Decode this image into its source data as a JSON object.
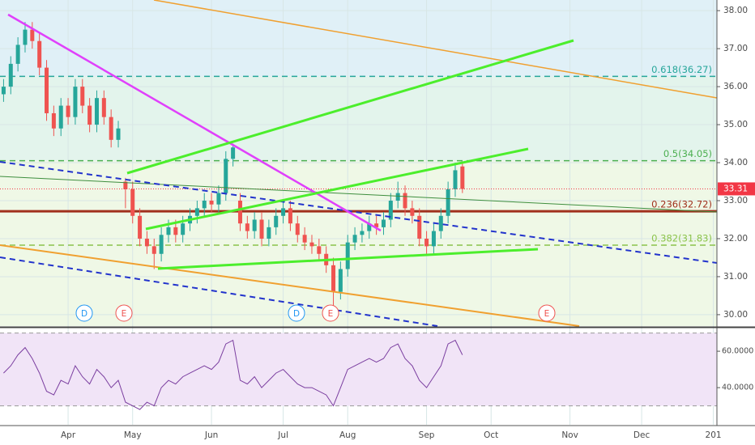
{
  "chart_data": {
    "type": "candlestick",
    "categories": [
      null,
      null,
      null,
      null,
      null,
      null,
      null,
      null,
      null,
      "Apr",
      null,
      null,
      null,
      null,
      null,
      null,
      null,
      null,
      "May",
      null,
      null,
      null,
      null,
      null,
      null,
      null,
      null,
      null,
      null,
      "Jun",
      null,
      null,
      null,
      null,
      null,
      null,
      null,
      null,
      null,
      "Jul",
      null,
      null,
      null,
      null,
      null,
      null,
      null,
      null,
      "Aug",
      null,
      null,
      null,
      null,
      null,
      null,
      null,
      null,
      null,
      null,
      "Sep",
      null,
      null,
      null,
      null,
      null,
      null,
      null,
      null,
      "Oct",
      null,
      null,
      null,
      null,
      null,
      null,
      null,
      null,
      null,
      null,
      "Nov",
      null,
      null,
      null,
      null,
      null,
      null,
      null,
      null,
      null,
      "Dec",
      null,
      null,
      null,
      null,
      null,
      null,
      null,
      null,
      null,
      "201"
    ],
    "open": [
      35.8,
      36.0,
      36.6,
      37.1,
      37.5,
      37.2,
      36.5,
      35.3,
      34.9,
      35.5,
      35.2,
      36.0,
      35.5,
      35.0,
      35.7,
      35.2,
      34.6,
      33.5,
      33.3,
      32.6,
      32.0,
      31.8,
      31.6,
      32.1,
      32.3,
      32.1,
      32.4,
      32.6,
      32.8,
      33.0,
      32.9,
      33.2,
      34.1,
      33.0,
      32.4,
      32.2,
      32.5,
      32.0,
      32.3,
      32.6,
      32.8,
      32.4,
      32.1,
      31.9,
      31.8,
      31.6,
      31.3,
      30.6,
      31.2,
      31.9,
      32.1,
      32.2,
      32.4,
      32.3,
      32.5,
      33.0,
      33.2,
      32.8,
      32.6,
      32.0,
      31.8,
      32.2,
      32.6,
      33.3,
      33.9,
      null,
      null,
      null,
      null,
      null,
      null,
      null,
      null,
      null,
      null,
      null,
      null,
      null,
      null,
      null,
      null,
      null,
      null,
      null,
      null,
      null,
      null,
      null,
      null,
      null,
      null,
      null,
      null,
      null,
      null,
      null,
      null,
      null,
      null,
      null
    ],
    "high": [
      36.2,
      36.8,
      37.3,
      37.7,
      37.7,
      37.4,
      36.7,
      35.5,
      35.7,
      35.7,
      36.2,
      36.2,
      35.7,
      35.9,
      35.9,
      35.4,
      35.1,
      33.6,
      33.5,
      32.8,
      32.2,
      32.0,
      32.3,
      32.5,
      32.5,
      32.6,
      32.8,
      33.0,
      33.2,
      33.2,
      33.4,
      34.3,
      34.5,
      33.2,
      32.6,
      32.7,
      32.7,
      32.5,
      32.8,
      33.0,
      33.0,
      32.6,
      32.3,
      32.1,
      32.0,
      31.8,
      31.5,
      31.4,
      32.1,
      32.3,
      32.4,
      32.6,
      32.6,
      32.7,
      33.2,
      33.5,
      33.4,
      33.0,
      32.8,
      32.2,
      32.4,
      32.8,
      33.5,
      34.0,
      34.0,
      null,
      null,
      null,
      null,
      null,
      null,
      null,
      null,
      null,
      null,
      null,
      null,
      null,
      null,
      null,
      null,
      null,
      null,
      null,
      null,
      null,
      null,
      null,
      null,
      null,
      null,
      null,
      null,
      null,
      null,
      null,
      null,
      null,
      null,
      null
    ],
    "low": [
      35.6,
      35.8,
      36.4,
      36.9,
      37.0,
      36.3,
      35.1,
      34.7,
      34.7,
      35.0,
      35.0,
      35.3,
      34.8,
      34.8,
      35.0,
      34.4,
      34.4,
      32.8,
      32.4,
      31.8,
      31.6,
      31.2,
      31.4,
      31.9,
      31.9,
      31.9,
      32.2,
      32.4,
      32.6,
      32.7,
      32.7,
      33.0,
      33.9,
      32.2,
      32.0,
      32.0,
      31.8,
      31.8,
      32.1,
      32.4,
      32.2,
      31.9,
      31.7,
      31.6,
      31.4,
      31.1,
      30.2,
      30.4,
      31.0,
      31.7,
      31.9,
      32.0,
      32.1,
      32.1,
      32.3,
      32.8,
      32.6,
      32.4,
      31.8,
      31.6,
      31.6,
      32.0,
      32.4,
      33.1,
      33.2,
      null,
      null,
      null,
      null,
      null,
      null,
      null,
      null,
      null,
      null,
      null,
      null,
      null,
      null,
      null,
      null,
      null,
      null,
      null,
      null,
      null,
      null,
      null,
      null,
      null,
      null,
      null,
      null,
      null,
      null,
      null,
      null,
      null,
      null,
      null
    ],
    "close": [
      36.0,
      36.6,
      37.1,
      37.5,
      37.2,
      36.5,
      35.3,
      34.9,
      35.5,
      35.2,
      36.0,
      35.5,
      35.0,
      35.7,
      35.2,
      34.6,
      34.9,
      33.3,
      32.6,
      32.0,
      31.8,
      31.6,
      32.1,
      32.3,
      32.1,
      32.4,
      32.6,
      32.8,
      33.0,
      32.9,
      33.2,
      34.1,
      34.4,
      32.4,
      32.2,
      32.5,
      32.0,
      32.3,
      32.6,
      32.8,
      32.4,
      32.1,
      31.9,
      31.8,
      31.6,
      31.3,
      30.6,
      31.2,
      31.9,
      32.1,
      32.2,
      32.4,
      32.3,
      32.5,
      33.0,
      33.2,
      32.8,
      32.6,
      32.0,
      31.8,
      32.2,
      32.6,
      33.3,
      33.8,
      33.31,
      null,
      null,
      null,
      null,
      null,
      null,
      null,
      null,
      null,
      null,
      null,
      null,
      null,
      null,
      null,
      null,
      null,
      null,
      null,
      null,
      null,
      null,
      null,
      null,
      null,
      null,
      null,
      null,
      null,
      null,
      null,
      null,
      null,
      null,
      null
    ],
    "up_color": "#26a69a",
    "down_color": "#ef5350",
    "last_color": "#f23645",
    "ylim": [
      29.7,
      38.28
    ],
    "yticks": [
      {
        "value": 30,
        "label": "30.00"
      },
      {
        "value": 31,
        "label": "31.00"
      },
      {
        "value": 32,
        "label": "32.00"
      },
      {
        "value": 33,
        "label": "33.00"
      },
      {
        "value": 34,
        "label": "34.00"
      },
      {
        "value": 35,
        "label": "35.00"
      },
      {
        "value": 36,
        "label": "36.00"
      },
      {
        "value": 37,
        "label": "37.00"
      },
      {
        "value": 38,
        "label": "38.00"
      }
    ],
    "fib_levels": [
      {
        "label": "0.618(36.27)",
        "value": 36.27,
        "color": "#26a69a",
        "dashed": true
      },
      {
        "label": "0.5(34.05)",
        "value": 34.05,
        "color": "#4caf50",
        "dashed": true
      },
      {
        "label": "0.236(32.72)",
        "value": 32.72,
        "color": "#a0301c",
        "dashed": false
      },
      {
        "label": "0.382(31.83)",
        "value": 31.83,
        "color": "#8bc34a",
        "dashed": true
      }
    ],
    "events": [
      "D",
      "E",
      "D",
      "E",
      "E"
    ],
    "rsi": {
      "color": "#7b3fa0",
      "values": [
        48,
        52,
        58,
        62,
        56,
        48,
        38,
        36,
        44,
        42,
        52,
        46,
        42,
        50,
        46,
        40,
        44,
        32,
        30,
        28,
        32,
        30,
        40,
        44,
        42,
        46,
        48,
        50,
        52,
        50,
        54,
        64,
        66,
        44,
        42,
        46,
        40,
        44,
        48,
        50,
        46,
        42,
        40,
        40,
        38,
        36,
        30,
        40,
        50,
        52,
        54,
        56,
        54,
        56,
        62,
        64,
        56,
        52,
        44,
        40,
        46,
        52,
        64,
        66,
        58,
        null,
        null,
        null,
        null,
        null,
        null,
        null,
        null,
        null,
        null,
        null,
        null,
        null,
        null,
        null,
        null,
        null,
        null,
        null,
        null,
        null,
        null,
        null,
        null,
        null,
        null,
        null,
        null,
        null,
        null,
        null,
        null,
        null,
        null,
        null
      ],
      "ylim": [
        19.6,
        71.6
      ],
      "yticks": [
        {
          "value": 40,
          "label": "40.0000"
        },
        {
          "value": 60,
          "label": "60.0000"
        }
      ],
      "bands": [
        30,
        70
      ]
    }
  }
}
